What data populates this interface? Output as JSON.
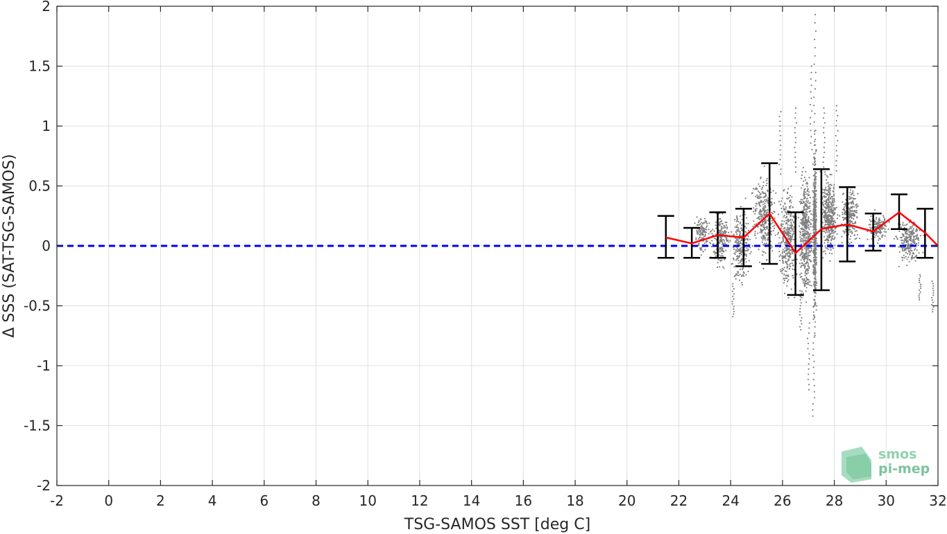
{
  "chart_data": {
    "type": "scatter",
    "xlabel": "TSG-SAMOS SST [deg C]",
    "ylabel": "Δ SSS (SAT-TSG-SAMOS)",
    "xlim": [
      -2,
      32
    ],
    "ylim": [
      -2,
      2
    ],
    "grid": true,
    "x_ticks": [
      -2,
      0,
      2,
      4,
      6,
      8,
      10,
      12,
      14,
      16,
      18,
      20,
      22,
      24,
      26,
      28,
      30,
      32
    ],
    "y_ticks": [
      -2,
      -1.5,
      -1,
      -0.5,
      0,
      0.5,
      1,
      1.5,
      2
    ],
    "reference_line": {
      "y": 0,
      "style": "dashed",
      "color": "#0000ee"
    },
    "binned_mean": {
      "color": "#ff0000",
      "points": [
        {
          "x": 21.5,
          "mean": 0.07,
          "lower": -0.1,
          "upper": 0.25
        },
        {
          "x": 22.5,
          "mean": 0.02,
          "lower": -0.1,
          "upper": 0.15
        },
        {
          "x": 23.5,
          "mean": 0.09,
          "lower": -0.1,
          "upper": 0.28
        },
        {
          "x": 24.5,
          "mean": 0.07,
          "lower": -0.17,
          "upper": 0.31
        },
        {
          "x": 25.5,
          "mean": 0.27,
          "lower": -0.15,
          "upper": 0.69
        },
        {
          "x": 26.5,
          "mean": -0.06,
          "lower": -0.41,
          "upper": 0.28
        },
        {
          "x": 27.5,
          "mean": 0.14,
          "lower": -0.37,
          "upper": 0.64
        },
        {
          "x": 28.5,
          "mean": 0.18,
          "lower": -0.13,
          "upper": 0.49
        },
        {
          "x": 29.5,
          "mean": 0.12,
          "lower": -0.04,
          "upper": 0.27
        },
        {
          "x": 30.5,
          "mean": 0.28,
          "lower": 0.14,
          "upper": 0.43
        },
        {
          "x": 31.5,
          "mean": 0.11,
          "lower": -0.1,
          "upper": 0.31
        },
        {
          "x": 32.0,
          "mean": 0.0
        }
      ]
    },
    "scatter": {
      "color": "#808080",
      "clusters": [
        {
          "x_center": 22.9,
          "x_spread": 0.25,
          "y_center": 0.1,
          "y_spread": 0.15,
          "n": 120
        },
        {
          "x_center": 23.6,
          "x_spread": 0.35,
          "y_center": 0.05,
          "y_spread": 0.25,
          "n": 200
        },
        {
          "x_center": 24.4,
          "x_spread": 0.35,
          "y_center": 0.0,
          "y_spread": 0.35,
          "n": 260
        },
        {
          "x_center": 25.3,
          "x_spread": 0.45,
          "y_center": 0.25,
          "y_spread": 0.4,
          "n": 320
        },
        {
          "x_center": 26.2,
          "x_spread": 0.35,
          "y_center": 0.05,
          "y_spread": 0.45,
          "n": 380
        },
        {
          "x_center": 26.9,
          "x_spread": 0.25,
          "y_center": 0.1,
          "y_spread": 0.55,
          "n": 500
        },
        {
          "x_center": 27.25,
          "x_spread": 0.07,
          "y_center": 0.1,
          "y_spread": 0.8,
          "n": 500
        },
        {
          "x_center": 27.8,
          "x_spread": 0.3,
          "y_center": 0.25,
          "y_spread": 0.35,
          "n": 420
        },
        {
          "x_center": 28.6,
          "x_spread": 0.35,
          "y_center": 0.25,
          "y_spread": 0.25,
          "n": 260
        },
        {
          "x_center": 29.7,
          "x_spread": 0.4,
          "y_center": 0.15,
          "y_spread": 0.12,
          "n": 160
        },
        {
          "x_center": 30.9,
          "x_spread": 0.5,
          "y_center": 0.05,
          "y_spread": 0.2,
          "n": 260
        }
      ],
      "extremes": [
        {
          "x": 27.25,
          "y": 1.93
        },
        {
          "x": 27.2,
          "y": -1.42
        },
        {
          "x": 27.0,
          "y": -1.2
        },
        {
          "x": 26.5,
          "y": 1.15
        },
        {
          "x": 25.9,
          "y": 1.12
        },
        {
          "x": 27.6,
          "y": 1.15
        },
        {
          "x": 27.1,
          "y": 1.5
        },
        {
          "x": 28.1,
          "y": 1.17
        },
        {
          "x": 24.1,
          "y": -0.59
        },
        {
          "x": 26.7,
          "y": -0.7
        },
        {
          "x": 31.3,
          "y": -0.45
        },
        {
          "x": 31.8,
          "y": -0.55
        }
      ]
    }
  },
  "logo": {
    "line1": "smos",
    "line2": "pi-mep"
  }
}
